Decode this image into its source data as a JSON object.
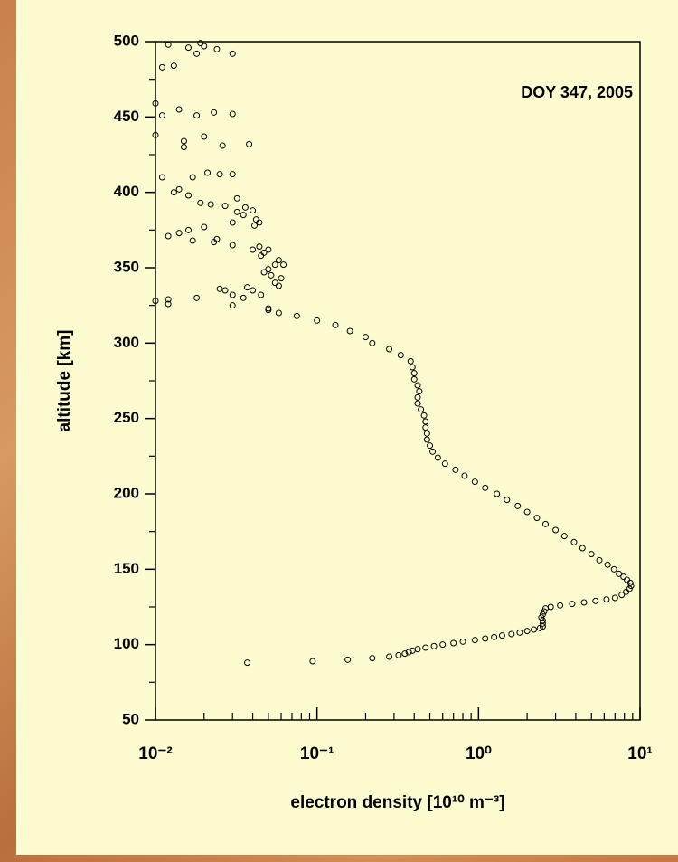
{
  "chart_data": {
    "type": "scatter",
    "annotation": "DOY 347, 2005",
    "xlabel": "electron density [10¹⁰ m⁻³]",
    "ylabel": "altitude [km]",
    "log_x": true,
    "color": "#000000",
    "xlim": [
      0.01,
      10
    ],
    "xticks": [
      {
        "value": 0.01,
        "label": "10⁻²"
      },
      {
        "value": 0.1,
        "label": "10⁻¹"
      },
      {
        "value": 1,
        "label": "10⁰"
      },
      {
        "value": 10,
        "label": "10¹"
      }
    ],
    "ylim": [
      50,
      500
    ],
    "yticks": [
      50,
      100,
      150,
      200,
      250,
      300,
      350,
      400,
      450,
      500
    ],
    "x": [
      0.037,
      0.094,
      0.155,
      0.22,
      0.28,
      0.32,
      0.35,
      0.37,
      0.39,
      0.42,
      0.47,
      0.53,
      0.6,
      0.7,
      0.8,
      0.95,
      1.1,
      1.25,
      1.4,
      1.6,
      1.8,
      2.0,
      2.2,
      2.4,
      2.5,
      2.5,
      2.5,
      2.45,
      2.5,
      2.55,
      2.6,
      2.8,
      3.2,
      3.8,
      4.5,
      5.3,
      6.2,
      7.0,
      7.7,
      8.2,
      8.6,
      8.8,
      8.7,
      8.3,
      7.9,
      7.4,
      6.9,
      6.3,
      5.6,
      5.0,
      4.4,
      3.9,
      3.4,
      3.0,
      2.6,
      2.3,
      2.0,
      1.75,
      1.5,
      1.3,
      1.1,
      0.95,
      0.82,
      0.72,
      0.62,
      0.56,
      0.52,
      0.5,
      0.48,
      0.48,
      0.47,
      0.47,
      0.46,
      0.44,
      0.42,
      0.42,
      0.43,
      0.42,
      0.4,
      0.4,
      0.39,
      0.38,
      0.33,
      0.28,
      0.22,
      0.2,
      0.16,
      0.13,
      0.1,
      0.075,
      0.058,
      0.05,
      0.012,
      0.016,
      0.019,
      0.02,
      0.018,
      0.024,
      0.03,
      0.011,
      0.013,
      0.01,
      0.011,
      0.014,
      0.018,
      0.023,
      0.03,
      0.01,
      0.015,
      0.02,
      0.038,
      0.015,
      0.026,
      0.011,
      0.017,
      0.021,
      0.025,
      0.03,
      0.013,
      0.014,
      0.016,
      0.019,
      0.022,
      0.027,
      0.032,
      0.032,
      0.035,
      0.036,
      0.04,
      0.042,
      0.044,
      0.041,
      0.03,
      0.012,
      0.014,
      0.016,
      0.02,
      0.017,
      0.023,
      0.024,
      0.03,
      0.04,
      0.044,
      0.047,
      0.05,
      0.045,
      0.055,
      0.058,
      0.05,
      0.047,
      0.052,
      0.06,
      0.055,
      0.058,
      0.062,
      0.025,
      0.027,
      0.03,
      0.037,
      0.04,
      0.045,
      0.035,
      0.018,
      0.012,
      0.01,
      0.012,
      0.03,
      0.05
    ],
    "values": [
      88,
      89,
      90,
      91,
      92,
      93,
      94,
      95,
      96,
      97,
      98,
      99,
      100,
      101,
      102,
      103,
      104,
      105,
      106,
      107,
      108,
      109,
      110,
      111,
      112,
      114,
      116,
      118,
      120,
      122,
      124,
      125,
      126,
      127,
      128,
      129,
      130,
      131,
      133,
      135,
      137,
      139,
      141,
      143,
      145,
      147,
      150,
      153,
      156,
      160,
      164,
      168,
      172,
      176,
      180,
      184,
      188,
      192,
      196,
      200,
      204,
      208,
      212,
      216,
      220,
      224,
      228,
      232,
      236,
      240,
      244,
      248,
      252,
      256,
      260,
      264,
      268,
      272,
      276,
      280,
      284,
      288,
      292,
      296,
      300,
      304,
      308,
      312,
      315,
      318,
      320,
      322,
      498,
      496,
      499,
      497,
      492,
      495,
      492,
      483,
      484,
      459,
      451,
      455,
      451,
      453,
      452,
      438,
      434,
      437,
      432,
      430,
      431,
      410,
      410,
      413,
      412,
      412,
      400,
      402,
      398,
      393,
      392,
      391,
      396,
      387,
      385,
      390,
      388,
      382,
      380,
      378,
      380,
      371,
      373,
      375,
      377,
      368,
      367,
      369,
      365,
      362,
      364,
      360,
      362,
      358,
      352,
      355,
      349,
      347,
      345,
      343,
      340,
      338,
      352,
      336,
      335,
      332,
      337,
      335,
      332,
      330,
      330,
      329,
      328,
      326,
      325,
      323
    ]
  }
}
